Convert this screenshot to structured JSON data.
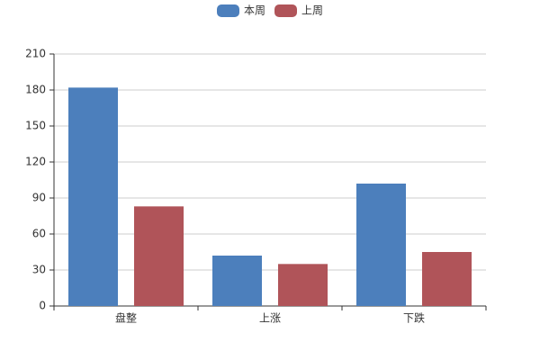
{
  "chart_data": {
    "type": "bar",
    "categories": [
      "盘整",
      "上涨",
      "下跌"
    ],
    "series": [
      {
        "name": "本周",
        "color": "#4c7fbc",
        "values": [
          182,
          42,
          102
        ]
      },
      {
        "name": "上周",
        "color": "#b05459",
        "values": [
          83,
          35,
          45
        ]
      }
    ],
    "ylim": [
      0,
      210
    ],
    "yticks": [
      0,
      30,
      60,
      90,
      120,
      150,
      180,
      210
    ],
    "grid": true
  }
}
